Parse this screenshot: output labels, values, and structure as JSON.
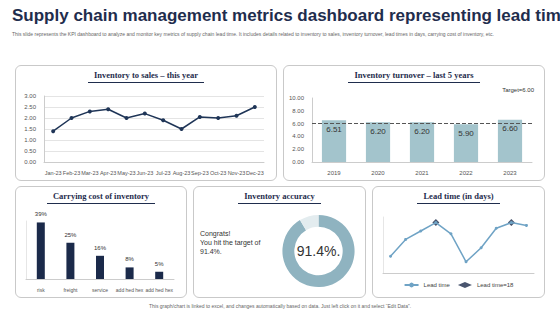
{
  "page": {
    "title": "Supply chain management metrics dashboard representing lead time",
    "subtitle": "This slide represents the KPI dashboard to analyze and monitor key metrics of supply chain lead time. It includes details related to inventory to sales, inventory turnover, lead times in days, carrying cost of inventory, etc.",
    "footer": "This graph/chart is linked to excel, and changes automatically based on data. Just left click on it and select “Edit Data”."
  },
  "chart_data": [
    {
      "type": "line",
      "title": "Inventory to sales – this year",
      "categories": [
        "Jan-23",
        "Feb-23",
        "Mar-23",
        "Apr-23",
        "May-23",
        "Jun-23",
        "Jul-23",
        "Aug-23",
        "Sep-23",
        "Oct-23",
        "Nov-23",
        "Dec-23"
      ],
      "values": [
        1.4,
        2.0,
        2.3,
        2.4,
        2.0,
        2.2,
        1.9,
        1.5,
        2.05,
        2.0,
        2.1,
        2.5
      ],
      "color": "#1f3557",
      "marker": "circle",
      "ylim": [
        0,
        3
      ],
      "yticks": [
        {
          "value": 0,
          "label": "0.00"
        },
        {
          "value": 0.5,
          "label": "0.50"
        },
        {
          "value": 1,
          "label": "1.00"
        },
        {
          "value": 1.5,
          "label": "1.50"
        },
        {
          "value": 2,
          "label": "2.00"
        },
        {
          "value": 2.5,
          "label": "2.50"
        },
        {
          "value": 3,
          "label": "3.00"
        }
      ],
      "grid": true
    },
    {
      "type": "bar",
      "title": "Inventory turnover – last 5 years",
      "categories": [
        "2019",
        "2020",
        "2021",
        "2022",
        "2023"
      ],
      "values": [
        6.51,
        6.2,
        6.2,
        5.9,
        6.6
      ],
      "value_labels": [
        "6.51",
        "6.20",
        "6.20",
        "5.90",
        "6.60"
      ],
      "data_labels": true,
      "color": "#a3c4cc",
      "target": 6,
      "target_label": "Target=6.00",
      "ylim": [
        0,
        10
      ],
      "yticks": [
        {
          "value": 0,
          "label": "0.00"
        },
        {
          "value": 2,
          "label": "2.00"
        },
        {
          "value": 4,
          "label": "4.00"
        },
        {
          "value": 6,
          "label": "6.00"
        },
        {
          "value": 8,
          "label": "8.00"
        },
        {
          "value": 10,
          "label": "10.00"
        }
      ],
      "grid": false
    },
    {
      "type": "bar",
      "title": "Carrying cost of inventory",
      "categories": [
        "risk",
        "freight",
        "service",
        "add hed hex",
        "add hed hex"
      ],
      "values": [
        39,
        25,
        16,
        8,
        5
      ],
      "value_labels": [
        "39%",
        "25%",
        "16%",
        "8%",
        "5%"
      ],
      "data_labels": true,
      "color": "#1b2a4a",
      "ylim": [
        0,
        40
      ],
      "yticks": [
        0,
        40
      ],
      "tick_labels": "x",
      "grid": false
    },
    {
      "type": "pie",
      "title": "Inventory accuracy",
      "values": [
        91.4,
        8.6
      ],
      "colors": [
        "#8fb3c0",
        "#e3ecef"
      ],
      "center_label": "91.4%.",
      "message": [
        "Congrats!",
        "You hit the target of",
        "91.4%."
      ]
    },
    {
      "type": "line",
      "title": "Lead time (in days)",
      "categories": [
        null,
        null,
        null,
        null,
        null,
        null,
        null,
        null,
        null,
        null
      ],
      "series": [
        {
          "name": "Lead time",
          "type": "line",
          "color": "#6fa3c5",
          "marker": "circle",
          "values": [
            6,
            12,
            15,
            18,
            14,
            4,
            9,
            16,
            18,
            17
          ]
        },
        {
          "name": "Lead time=18",
          "type": "scatter",
          "color": "#1b2a4a",
          "marker": "diamond",
          "values": [
            null,
            null,
            null,
            18,
            null,
            null,
            null,
            null,
            18,
            null
          ]
        }
      ],
      "ylim": [
        0,
        20
      ],
      "yticks": [
        0,
        20
      ],
      "tick_labels": false,
      "legend": "bottom",
      "grid": false
    }
  ]
}
